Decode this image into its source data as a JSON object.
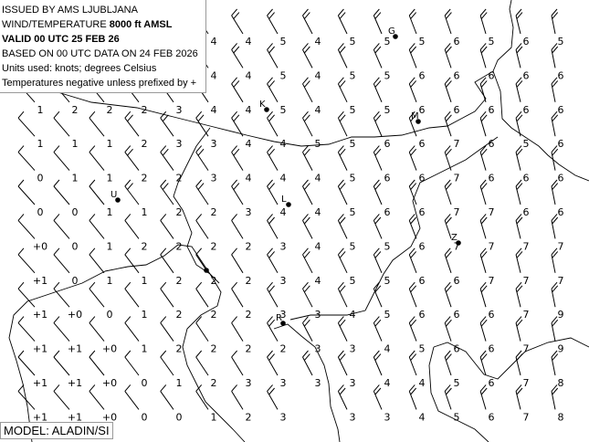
{
  "info": {
    "line1": "ISSUED BY AMS LJUBLJANA",
    "line2_prefix": "WIND/TEMPERATURE ",
    "line2_level": "8000 ft AMSL",
    "line3": "VALID 00 UTC 25 FEB 26",
    "line4": "BASED ON 00 UTC DATA ON 24 FEB 2026",
    "line5": "Units used: knots; degrees Celsius",
    "line6": "Temperatures negative unless prefixed by +"
  },
  "model_label": "MODEL: ALADIN/SI",
  "temperature_grid": [
    [
      null,
      null,
      null,
      null,
      null,
      "4",
      "4",
      "5",
      "4",
      "5",
      "5",
      "5",
      "6",
      "5",
      "6",
      "5"
    ],
    [
      null,
      null,
      null,
      null,
      null,
      "4",
      "4",
      "5",
      "4",
      "5",
      "5",
      "6",
      "6",
      "6",
      "6",
      "6"
    ],
    [
      "1",
      "2",
      "2",
      "2",
      "3",
      "4",
      "4",
      "5",
      "4",
      "5",
      "5",
      "6",
      "6",
      "6",
      "6",
      "6"
    ],
    [
      "1",
      "1",
      "1",
      "2",
      "3",
      "3",
      "4",
      "4",
      "5",
      "5",
      "6",
      "6",
      "7",
      "6",
      "5",
      "6"
    ],
    [
      "0",
      "1",
      "1",
      "2",
      "2",
      "3",
      "4",
      "4",
      "4",
      "5",
      "6",
      "6",
      "7",
      "6",
      "6",
      "6"
    ],
    [
      "0",
      "0",
      "1",
      "1",
      "2",
      "2",
      "3",
      "4",
      "4",
      "5",
      "6",
      "6",
      "7",
      "7",
      "6",
      "6"
    ],
    [
      "+0",
      "0",
      "1",
      "2",
      "2",
      "2",
      "2",
      "3",
      "4",
      "5",
      "5",
      "6",
      "7",
      "7",
      "7",
      "7"
    ],
    [
      "+1",
      "0",
      "1",
      "1",
      "2",
      "2",
      "2",
      "3",
      "4",
      "5",
      "5",
      "6",
      "6",
      "7",
      "7",
      "7"
    ],
    [
      "+1",
      "+0",
      "0",
      "1",
      "2",
      "2",
      "2",
      "3",
      "3",
      "4",
      "5",
      "6",
      "6",
      "6",
      "7",
      "9"
    ],
    [
      "+1",
      "+1",
      "+0",
      "1",
      "2",
      "2",
      "2",
      "2",
      "3",
      "3",
      "4",
      "5",
      "6",
      "6",
      "7",
      "9"
    ],
    [
      "+1",
      "+1",
      "+0",
      "0",
      "1",
      "2",
      "3",
      "3",
      "3",
      "3",
      "4",
      "4",
      "5",
      "6",
      "7",
      "8"
    ],
    [
      "+1",
      "+1",
      "+0",
      "0",
      "0",
      "1",
      "2",
      "3",
      null,
      "3",
      "3",
      "4",
      "5",
      "6",
      "7",
      "8"
    ]
  ],
  "stations": [
    {
      "label": "G"
    },
    {
      "label": "K"
    },
    {
      "label": "M"
    },
    {
      "label": "U"
    },
    {
      "label": "L"
    },
    {
      "label": "Z"
    },
    {
      "label": ""
    },
    {
      "label": "R"
    }
  ],
  "wind_symbol": "wind-barb-icon"
}
